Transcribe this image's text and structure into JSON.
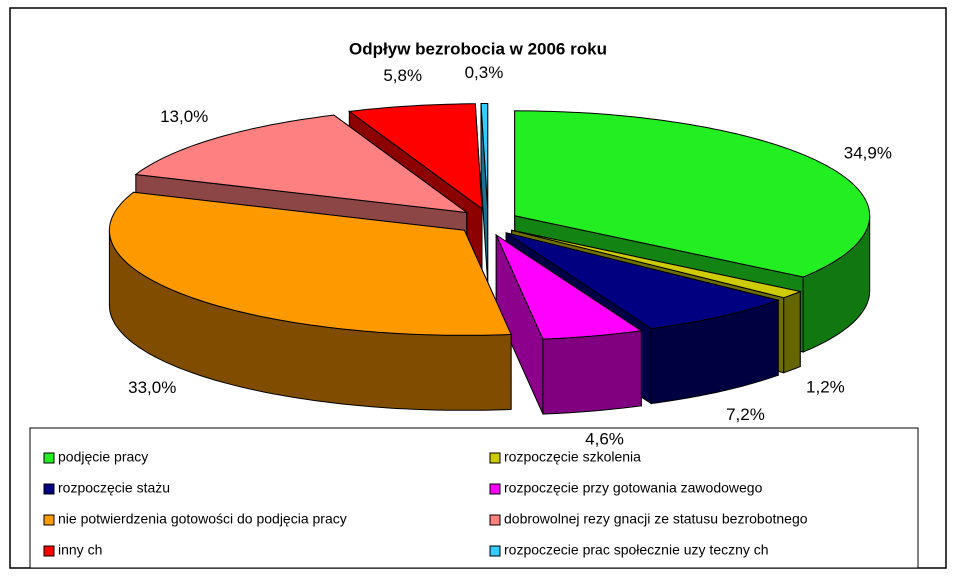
{
  "chart_data": {
    "type": "pie3d",
    "title": "Odpływ bezrobocia w 2006 roku",
    "categories": [
      "podjęcie pracy",
      "rozpoczęcie szkolenia",
      "rozpoczęcie stażu",
      "rozpoczęcie przy gotowania zawodowego",
      "nie potwierdzenia gotowości do podjęcia pracy",
      "dobrowolnej rezy gnacji ze statusu bezrobotnego",
      "inny ch",
      "rozpoczecie prac społecznie uzy teczny ch"
    ],
    "values": [
      34.9,
      1.2,
      7.2,
      4.6,
      33.0,
      13.0,
      5.8,
      0.3
    ],
    "value_labels": [
      "34,9%",
      "1,2%",
      "7,2%",
      "4,6%",
      "33,0%",
      "13,0%",
      "5,8%",
      "0,3%"
    ],
    "colors": [
      "#22ee22",
      "#cccc00",
      "#000080",
      "#ff00ff",
      "#ff9900",
      "#ff8080",
      "#ff0000",
      "#33ccff"
    ],
    "legend": "bottom"
  }
}
